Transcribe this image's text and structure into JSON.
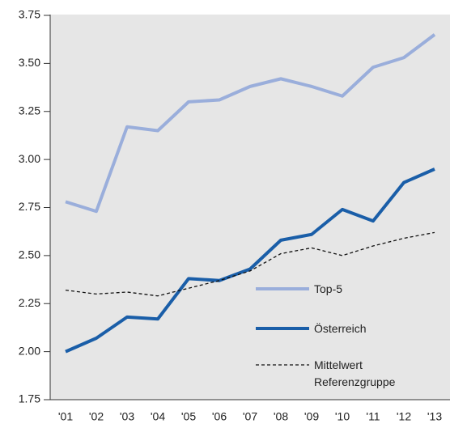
{
  "chart_data": {
    "type": "line",
    "categories": [
      "'01",
      "'02",
      "'03",
      "'04",
      "'05",
      "'06",
      "'07",
      "'08",
      "'09",
      "'10",
      "'11",
      "'12",
      "'13"
    ],
    "ylim": [
      1.75,
      3.75
    ],
    "yticks": [
      1.75,
      {
        "value": 2,
        "label": "2.00"
      },
      2.25,
      {
        "value": 2.5,
        "label": "2.50"
      },
      2.75,
      {
        "value": 3,
        "label": "3.00"
      },
      3.25,
      {
        "value": 3.5,
        "label": "3.50"
      },
      3.75
    ],
    "grid": false,
    "series": [
      {
        "name": "Top-5",
        "color": "#9aaedb",
        "values": [
          2.78,
          2.73,
          3.17,
          3.15,
          3.3,
          3.31,
          3.38,
          3.42,
          3.38,
          3.33,
          3.48,
          3.53,
          3.65
        ]
      },
      {
        "name": "Österreich",
        "color": "#1a5ea8",
        "values": [
          2.0,
          2.07,
          2.18,
          2.17,
          2.38,
          2.37,
          2.43,
          2.58,
          2.61,
          2.74,
          2.68,
          2.88,
          2.95
        ]
      },
      {
        "name": "Mittelwert Referenzgruppe",
        "color": "#111111",
        "values": [
          2.32,
          2.3,
          2.31,
          2.29,
          2.33,
          2.37,
          2.42,
          2.51,
          2.54,
          2.5,
          2.55,
          2.59,
          2.62
        ]
      }
    ]
  }
}
